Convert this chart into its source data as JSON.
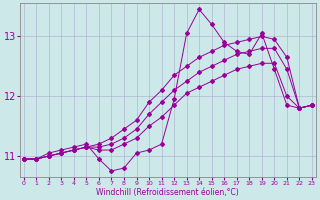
{
  "xlabel": "Windchill (Refroidissement éolien,°C)",
  "bg_color": "#cce8e8",
  "line_color": "#990099",
  "grid_color": "#aaaacc",
  "x_ticks": [
    0,
    1,
    2,
    3,
    4,
    5,
    6,
    7,
    8,
    9,
    10,
    11,
    12,
    13,
    14,
    15,
    16,
    17,
    18,
    19,
    20,
    21,
    22,
    23
  ],
  "y_ticks": [
    11,
    12,
    13
  ],
  "ylim": [
    10.65,
    13.55
  ],
  "xlim": [
    -0.3,
    23.3
  ],
  "series": [
    [
      10.95,
      10.95,
      11.05,
      11.1,
      11.15,
      11.2,
      10.95,
      10.75,
      10.8,
      11.05,
      11.1,
      11.2,
      11.95,
      13.05,
      13.45,
      13.2,
      12.9,
      12.75,
      12.7,
      13.05,
      12.45,
      11.85,
      11.8,
      11.85
    ],
    [
      10.95,
      10.95,
      11.0,
      11.05,
      11.1,
      11.15,
      11.1,
      11.1,
      11.2,
      11.3,
      11.5,
      11.65,
      11.85,
      12.05,
      12.15,
      12.25,
      12.35,
      12.45,
      12.5,
      12.55,
      12.55,
      12.0,
      11.8,
      11.85
    ],
    [
      10.95,
      10.95,
      11.0,
      11.05,
      11.1,
      11.15,
      11.15,
      11.2,
      11.3,
      11.45,
      11.7,
      11.9,
      12.1,
      12.25,
      12.4,
      12.5,
      12.6,
      12.7,
      12.75,
      12.8,
      12.8,
      12.45,
      11.8,
      11.85
    ],
    [
      10.95,
      10.95,
      11.0,
      11.05,
      11.1,
      11.15,
      11.2,
      11.3,
      11.45,
      11.6,
      11.9,
      12.1,
      12.35,
      12.5,
      12.65,
      12.75,
      12.85,
      12.9,
      12.95,
      13.0,
      12.95,
      12.65,
      11.8,
      11.85
    ]
  ]
}
